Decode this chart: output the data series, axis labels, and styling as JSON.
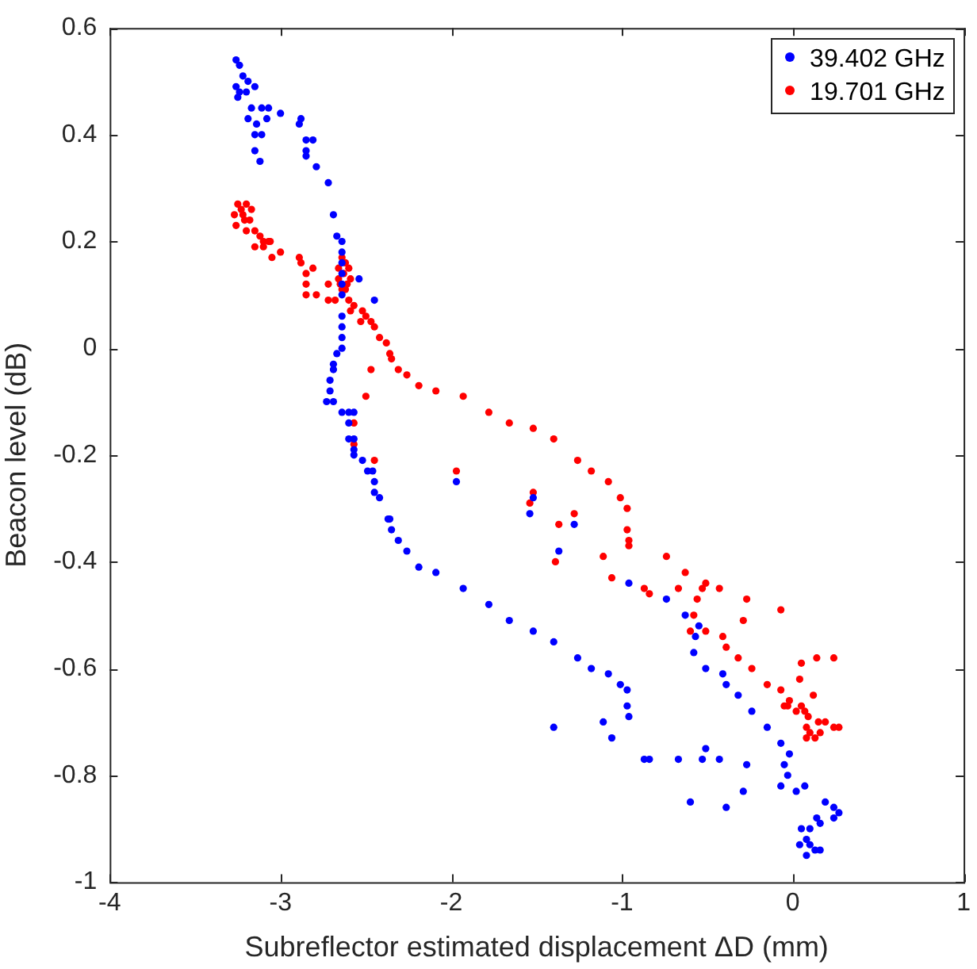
{
  "chart_data": {
    "type": "scatter",
    "xlabel": "Subreflector estimated displacement ΔD (mm)",
    "ylabel": "Beacon level (dB)",
    "xlim": [
      -4,
      1
    ],
    "xticks": [
      -4,
      -3,
      -2,
      -1,
      0,
      1
    ],
    "ylim": [
      -1,
      0.6
    ],
    "yticks": [
      -1,
      -0.8,
      -0.6,
      -0.4,
      -0.2,
      0,
      0.2,
      0.4,
      0.6
    ],
    "grid": false,
    "legend": "top right",
    "marker": "circle",
    "series": [
      {
        "name": "39.402 GHz",
        "color": "#0000ff",
        "x": [
          -3.26,
          -3.24,
          -3.22,
          -3.26,
          -3.24,
          -3.19,
          -3.15,
          -3.25,
          -3.2,
          -3.17,
          -3.11,
          -3.07,
          -3.0,
          -3.19,
          -3.14,
          -3.08,
          -3.15,
          -3.11,
          -3.15,
          -3.12,
          -2.89,
          -2.88,
          -2.85,
          -2.81,
          -2.85,
          -2.85,
          -2.79,
          -2.72,
          -2.69,
          -2.67,
          -2.64,
          -2.64,
          -2.64,
          -2.64,
          -2.64,
          -2.64,
          -2.54,
          -2.45,
          -2.64,
          -2.64,
          -2.64,
          -2.64,
          -2.67,
          -2.69,
          -2.69,
          -2.71,
          -2.71,
          -2.73,
          -2.69,
          -2.64,
          -2.6,
          -2.57,
          -2.6,
          -2.6,
          -2.57,
          -2.57,
          -2.57,
          -2.52,
          -2.49,
          -2.46,
          -2.45,
          -2.45,
          -2.42,
          -2.36,
          -2.37,
          -2.35,
          -2.31,
          -2.26,
          -2.19,
          -2.09,
          -1.93,
          -1.78,
          -1.66,
          -1.52,
          -1.4,
          -1.26,
          -1.18,
          -1.08,
          -1.01,
          -0.97,
          -1.97,
          -1.52,
          -1.54,
          -1.28,
          -1.37,
          -0.96,
          -0.74,
          -0.63,
          -0.55,
          -0.57,
          -0.58,
          -0.51,
          -0.41,
          -0.39,
          -0.32,
          -0.24,
          -0.97,
          -0.96,
          -1.11,
          -1.06,
          -1.4,
          -0.15,
          -0.07,
          -0.02,
          -0.05,
          -0.03,
          -0.07,
          0.02,
          0.07,
          0.19,
          0.24,
          0.27,
          0.24,
          0.14,
          0.16,
          0.05,
          0.1,
          0.08,
          0.04,
          0.1,
          0.13,
          0.16,
          0.08,
          -0.87,
          -0.84,
          -0.67,
          -0.53,
          -0.51,
          -0.43,
          -0.27,
          -0.29,
          -0.39,
          -0.6
        ],
        "values": [
          0.54,
          0.53,
          0.51,
          0.49,
          0.48,
          0.5,
          0.49,
          0.47,
          0.48,
          0.45,
          0.45,
          0.45,
          0.44,
          0.43,
          0.42,
          0.43,
          0.4,
          0.4,
          0.37,
          0.35,
          0.42,
          0.43,
          0.39,
          0.39,
          0.37,
          0.36,
          0.34,
          0.31,
          0.25,
          0.21,
          0.2,
          0.18,
          0.16,
          0.14,
          0.12,
          0.1,
          0.13,
          0.09,
          0.06,
          0.04,
          0.02,
          0.0,
          -0.01,
          -0.03,
          -0.04,
          -0.06,
          -0.08,
          -0.1,
          -0.1,
          -0.12,
          -0.12,
          -0.12,
          -0.14,
          -0.17,
          -0.17,
          -0.19,
          -0.2,
          -0.21,
          -0.23,
          -0.23,
          -0.25,
          -0.27,
          -0.28,
          -0.32,
          -0.32,
          -0.34,
          -0.36,
          -0.38,
          -0.41,
          -0.42,
          -0.45,
          -0.48,
          -0.51,
          -0.53,
          -0.55,
          -0.58,
          -0.6,
          -0.61,
          -0.63,
          -0.64,
          -0.25,
          -0.28,
          -0.31,
          -0.33,
          -0.38,
          -0.44,
          -0.47,
          -0.5,
          -0.52,
          -0.54,
          -0.57,
          -0.6,
          -0.61,
          -0.63,
          -0.65,
          -0.68,
          -0.67,
          -0.69,
          -0.7,
          -0.73,
          -0.71,
          -0.71,
          -0.74,
          -0.76,
          -0.78,
          -0.8,
          -0.82,
          -0.83,
          -0.82,
          -0.85,
          -0.86,
          -0.87,
          -0.88,
          -0.88,
          -0.89,
          -0.9,
          -0.9,
          -0.92,
          -0.93,
          -0.93,
          -0.94,
          -0.94,
          -0.95,
          -0.77,
          -0.77,
          -0.77,
          -0.77,
          -0.75,
          -0.77,
          -0.78,
          -0.83,
          -0.86,
          -0.85
        ]
      },
      {
        "name": "19.701 GHz",
        "color": "#ff0000",
        "x": [
          -3.25,
          -3.23,
          -3.2,
          -3.27,
          -3.22,
          -3.18,
          -3.26,
          -3.2,
          -3.15,
          -3.12,
          -3.1,
          -3.07,
          -3.15,
          -3.1,
          -3.06,
          -3.21,
          -3.17,
          -3.05,
          -3.0,
          -2.89,
          -2.88,
          -2.85,
          -2.81,
          -2.85,
          -2.85,
          -2.79,
          -2.72,
          -2.68,
          -2.72,
          -2.64,
          -2.62,
          -2.6,
          -2.66,
          -2.63,
          -2.59,
          -2.65,
          -2.61,
          -2.62,
          -2.66,
          -2.64,
          -2.6,
          -2.57,
          -2.59,
          -2.52,
          -2.5,
          -2.47,
          -2.45,
          -2.53,
          -2.42,
          -2.38,
          -2.36,
          -2.35,
          -2.31,
          -2.26,
          -2.19,
          -2.09,
          -1.93,
          -1.78,
          -1.66,
          -2.47,
          -2.5,
          -2.57,
          -2.57,
          -2.45,
          -1.97,
          -1.52,
          -1.4,
          -1.26,
          -1.18,
          -1.08,
          -1.01,
          -0.97,
          -0.97,
          -0.96,
          -0.96,
          -1.52,
          -1.54,
          -1.28,
          -1.37,
          -1.39,
          -1.11,
          -1.06,
          -0.87,
          -0.84,
          -0.74,
          -0.63,
          -0.67,
          -0.53,
          -0.56,
          -0.58,
          -0.6,
          -0.51,
          -0.43,
          -0.51,
          -0.41,
          -0.39,
          -0.32,
          -0.24,
          -0.27,
          -0.29,
          -0.07,
          -0.15,
          -0.07,
          -0.02,
          -0.03,
          0.02,
          0.07,
          0.09,
          0.04,
          0.05,
          0.14,
          0.24,
          0.12,
          0.05,
          0.08,
          0.15,
          0.19,
          0.1,
          0.08,
          0.13,
          0.16,
          0.24,
          0.27,
          -0.05
        ],
        "values": [
          0.27,
          0.26,
          0.27,
          0.25,
          0.25,
          0.24,
          0.23,
          0.22,
          0.22,
          0.21,
          0.2,
          0.2,
          0.19,
          0.19,
          0.2,
          0.24,
          0.26,
          0.17,
          0.18,
          0.17,
          0.16,
          0.14,
          0.15,
          0.12,
          0.1,
          0.1,
          0.12,
          0.09,
          0.09,
          0.17,
          0.16,
          0.15,
          0.15,
          0.14,
          0.13,
          0.12,
          0.12,
          0.11,
          0.13,
          0.11,
          0.09,
          0.08,
          0.07,
          0.07,
          0.06,
          0.05,
          0.04,
          0.05,
          0.02,
          0.01,
          -0.01,
          -0.02,
          -0.04,
          -0.05,
          -0.07,
          -0.08,
          -0.09,
          -0.12,
          -0.14,
          -0.04,
          -0.09,
          -0.14,
          -0.18,
          -0.21,
          -0.23,
          -0.15,
          -0.17,
          -0.21,
          -0.23,
          -0.25,
          -0.28,
          -0.3,
          -0.34,
          -0.36,
          -0.37,
          -0.27,
          -0.29,
          -0.31,
          -0.33,
          -0.4,
          -0.39,
          -0.43,
          -0.45,
          -0.46,
          -0.39,
          -0.42,
          -0.45,
          -0.45,
          -0.47,
          -0.5,
          -0.53,
          -0.44,
          -0.45,
          -0.53,
          -0.54,
          -0.56,
          -0.58,
          -0.6,
          -0.47,
          -0.51,
          -0.49,
          -0.63,
          -0.64,
          -0.66,
          -0.67,
          -0.68,
          -0.68,
          -0.69,
          -0.62,
          -0.59,
          -0.58,
          -0.58,
          -0.65,
          -0.67,
          -0.71,
          -0.7,
          -0.7,
          -0.72,
          -0.73,
          -0.73,
          -0.72,
          -0.71,
          -0.71,
          -0.67
        ]
      }
    ]
  }
}
